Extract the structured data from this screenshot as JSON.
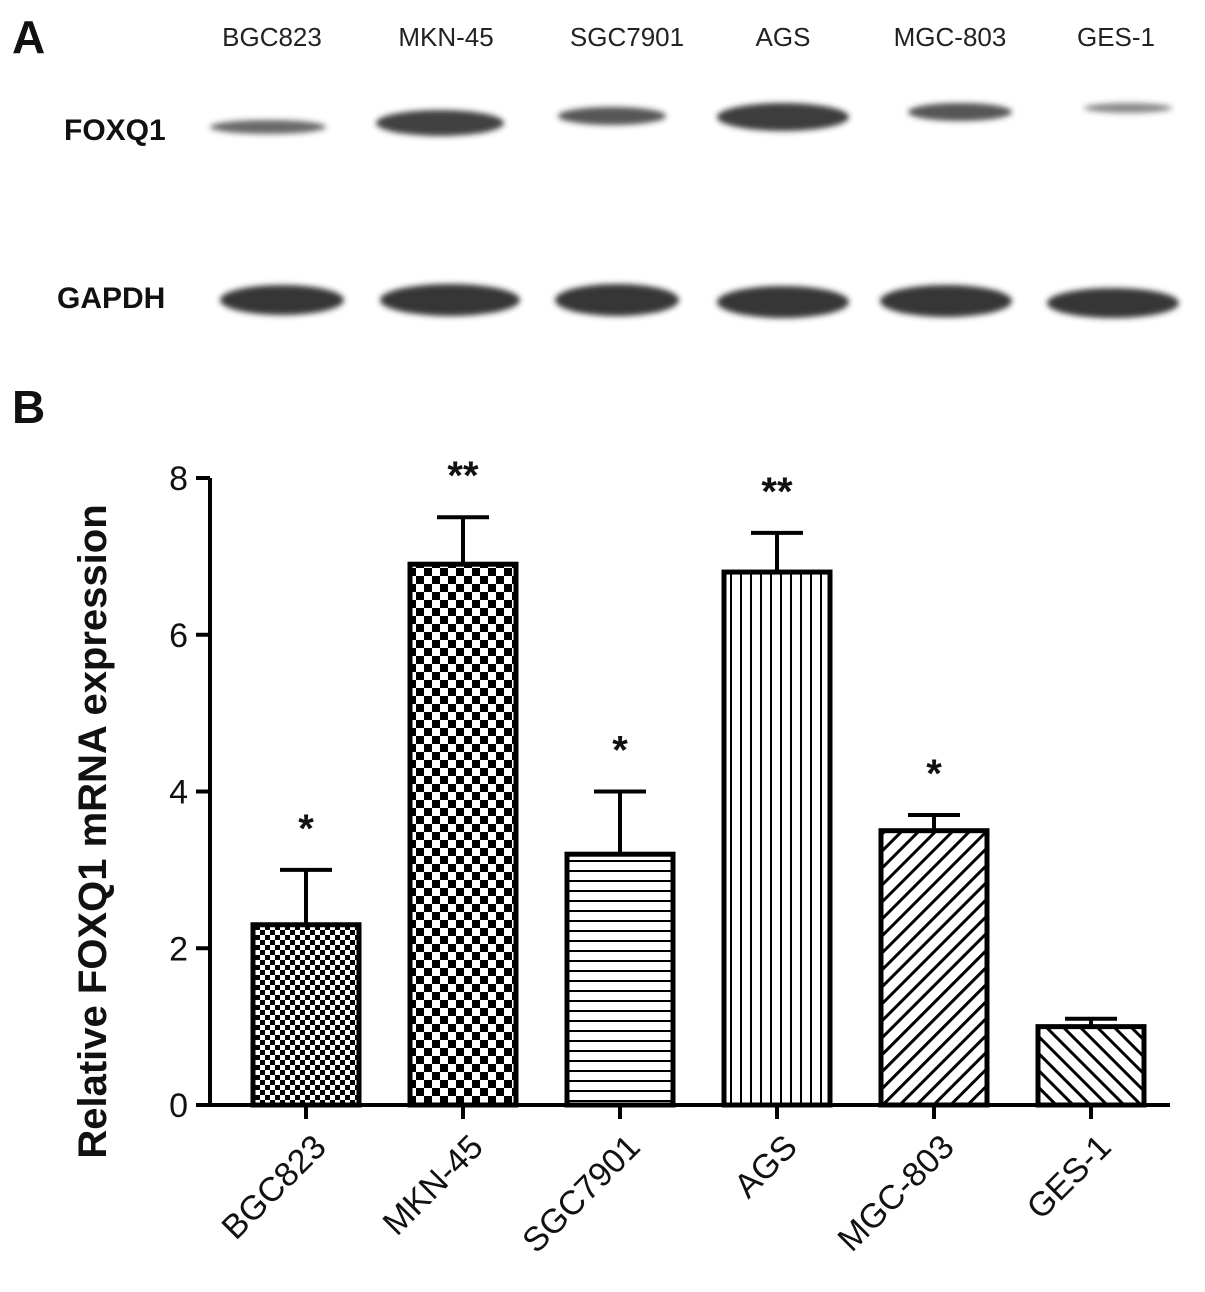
{
  "panels": {
    "a": "A",
    "b": "B"
  },
  "western_blot": {
    "lanes": [
      "BGC823",
      "MKN-45",
      "SGC7901",
      "AGS",
      "MGC-803",
      "GES-1"
    ],
    "proteins": [
      "FOXQ1",
      "GAPDH"
    ],
    "band_color": "#2b2b2b"
  },
  "chart_data": {
    "type": "bar",
    "categories": [
      "BGC823",
      "MKN-45",
      "SGC7901",
      "AGS",
      "MGC-803",
      "GES-1"
    ],
    "values": [
      2.3,
      6.9,
      3.2,
      6.8,
      3.5,
      1.0
    ],
    "errors": [
      0.7,
      0.6,
      0.8,
      0.5,
      0.2,
      0.1
    ],
    "significance": [
      "*",
      "**",
      "*",
      "**",
      "*",
      ""
    ],
    "patterns": [
      "fine-checker",
      "checker",
      "horizontal-lines",
      "vertical-lines",
      "diagonal-lines",
      "diagonal-lines-reverse"
    ],
    "xlabel": "",
    "ylabel": "Relative FOXQ1 mRNA expression",
    "ylim": [
      0,
      8
    ],
    "yticks": [
      0,
      2,
      4,
      6,
      8
    ],
    "grid": false,
    "bar_color": "#000000"
  }
}
